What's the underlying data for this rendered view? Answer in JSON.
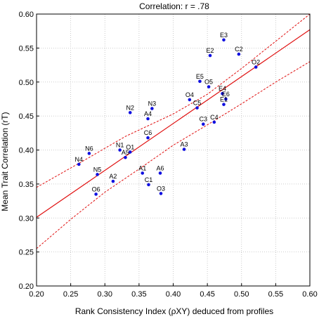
{
  "chart_data": {
    "type": "scatter",
    "title": "Correlation: r = .78",
    "xlabel": "Rank Consistency Index (ρXY) deduced from profiles",
    "ylabel": "Mean Trait Correlation (rT)",
    "xlim": [
      0.2,
      0.6
    ],
    "ylim": [
      0.2,
      0.6
    ],
    "xticks": [
      "0.20",
      "0.25",
      "0.30",
      "0.35",
      "0.40",
      "0.45",
      "0.50",
      "0.55",
      "0.60"
    ],
    "yticks": [
      "0.20",
      "0.25",
      "0.30",
      "0.35",
      "0.40",
      "0.45",
      "0.50",
      "0.55",
      "0.60"
    ],
    "grid": true,
    "points": [
      {
        "label": "E3",
        "x": 0.474,
        "y": 0.562
      },
      {
        "label": "E2",
        "x": 0.454,
        "y": 0.539
      },
      {
        "label": "C2",
        "x": 0.496,
        "y": 0.541
      },
      {
        "label": "O2",
        "x": 0.521,
        "y": 0.522
      },
      {
        "label": "E5",
        "x": 0.439,
        "y": 0.501
      },
      {
        "label": "O5",
        "x": 0.452,
        "y": 0.493
      },
      {
        "label": "E4",
        "x": 0.472,
        "y": 0.483
      },
      {
        "label": "E6",
        "x": 0.477,
        "y": 0.475
      },
      {
        "label": "O4",
        "x": 0.424,
        "y": 0.474
      },
      {
        "label": "C5",
        "x": 0.435,
        "y": 0.462
      },
      {
        "label": "E1",
        "x": 0.474,
        "y": 0.467
      },
      {
        "label": "C4",
        "x": 0.46,
        "y": 0.441
      },
      {
        "label": "C3",
        "x": 0.444,
        "y": 0.438
      },
      {
        "label": "N3",
        "x": 0.369,
        "y": 0.461
      },
      {
        "label": "N2",
        "x": 0.337,
        "y": 0.455
      },
      {
        "label": "A4",
        "x": 0.363,
        "y": 0.446
      },
      {
        "label": "C6",
        "x": 0.363,
        "y": 0.418
      },
      {
        "label": "A3",
        "x": 0.416,
        "y": 0.401
      },
      {
        "label": "N1",
        "x": 0.322,
        "y": 0.4
      },
      {
        "label": "O1",
        "x": 0.337,
        "y": 0.397
      },
      {
        "label": "A5",
        "x": 0.33,
        "y": 0.389
      },
      {
        "label": "N6",
        "x": 0.277,
        "y": 0.395
      },
      {
        "label": "N4",
        "x": 0.262,
        "y": 0.379
      },
      {
        "label": "N5",
        "x": 0.289,
        "y": 0.364
      },
      {
        "label": "A1",
        "x": 0.355,
        "y": 0.366
      },
      {
        "label": "A6",
        "x": 0.381,
        "y": 0.366
      },
      {
        "label": "A2",
        "x": 0.312,
        "y": 0.354
      },
      {
        "label": "C1",
        "x": 0.364,
        "y": 0.349
      },
      {
        "label": "O6",
        "x": 0.287,
        "y": 0.335
      },
      {
        "label": "O3",
        "x": 0.382,
        "y": 0.336
      }
    ],
    "fit_line": {
      "x": [
        0.2,
        0.6
      ],
      "y": [
        0.301,
        0.577
      ]
    },
    "ci_upper": {
      "x": [
        0.2,
        0.27,
        0.33,
        0.4,
        0.45,
        0.5,
        0.55,
        0.6
      ],
      "y": [
        0.345,
        0.385,
        0.42,
        0.453,
        0.482,
        0.52,
        0.56,
        0.6
      ]
    },
    "ci_lower": {
      "x": [
        0.2,
        0.25,
        0.3,
        0.35,
        0.4,
        0.45,
        0.5,
        0.55,
        0.6
      ],
      "y": [
        0.255,
        0.298,
        0.338,
        0.372,
        0.407,
        0.437,
        0.468,
        0.5,
        0.53
      ]
    },
    "colors": {
      "points": "#1010e0",
      "fit": "#e01010",
      "grid": "#bdbdbd"
    }
  }
}
